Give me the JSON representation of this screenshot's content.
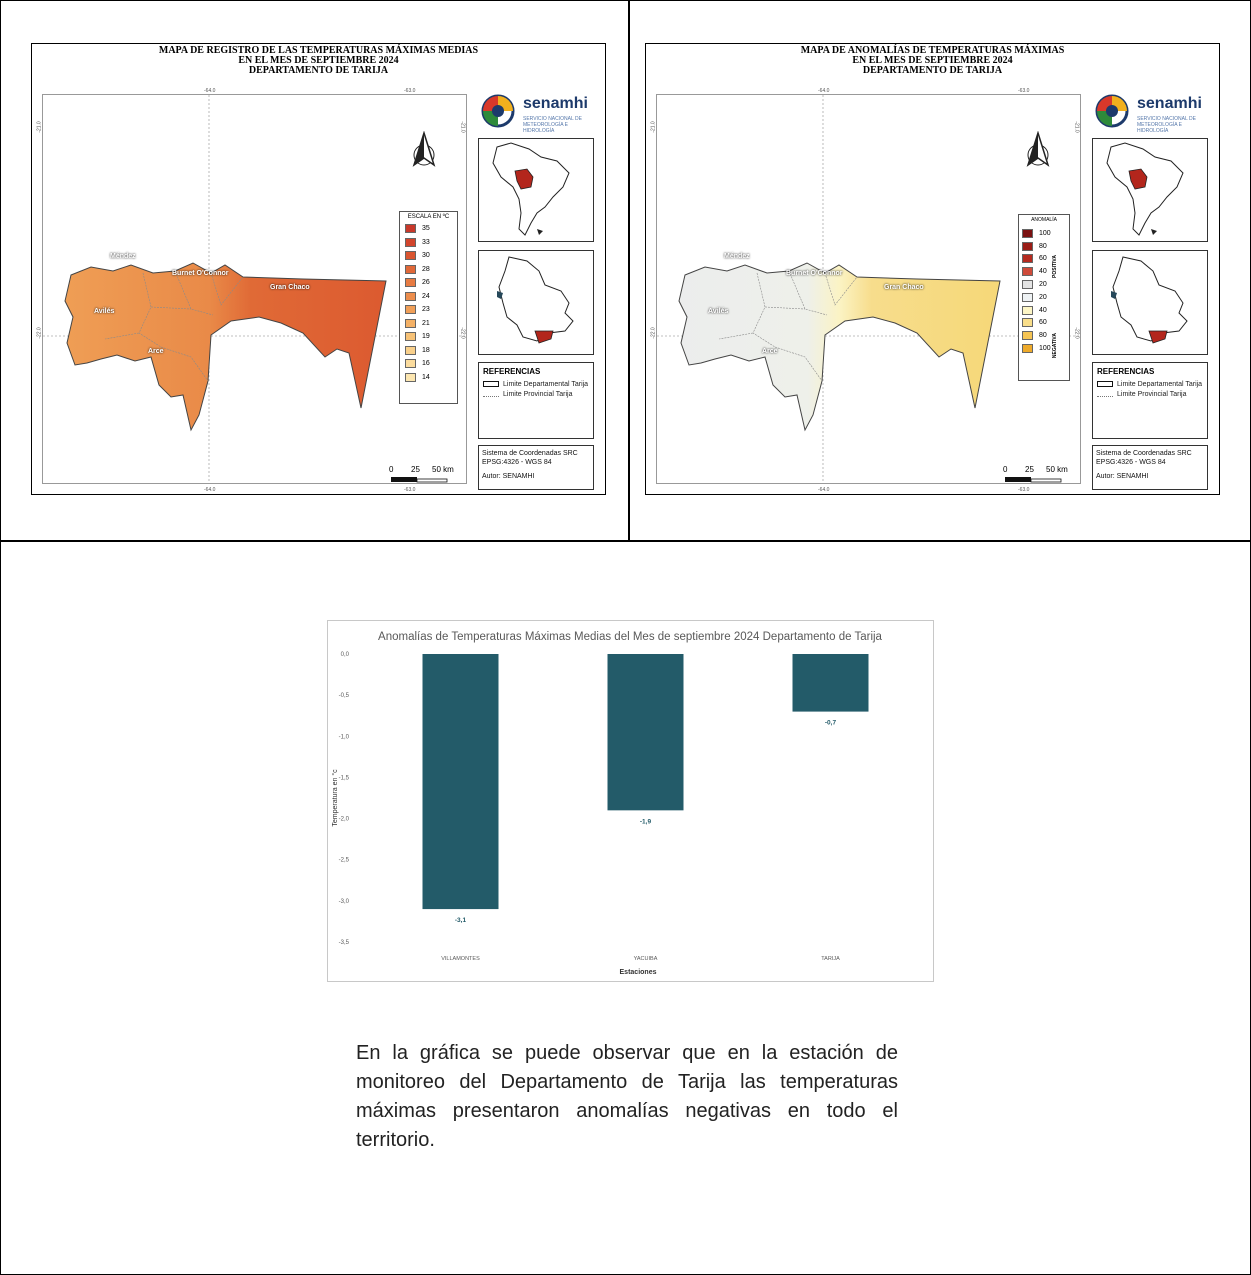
{
  "map_left": {
    "title_lines": [
      "MAPA DE REGISTRO DE LAS TEMPERATURAS MÁXIMAS MEDIAS",
      "EN EL MES DE SEPTIEMBRE 2024",
      "DEPARTAMENTO DE TARIJA"
    ],
    "legend_title": "ESCALA EN ºC",
    "legend": [
      {
        "label": "35",
        "color": "#c8382a"
      },
      {
        "label": "33",
        "color": "#d2452c"
      },
      {
        "label": "30",
        "color": "#da5530"
      },
      {
        "label": "28",
        "color": "#e06838"
      },
      {
        "label": "26",
        "color": "#e77b42"
      },
      {
        "label": "24",
        "color": "#ec8d4c"
      },
      {
        "label": "23",
        "color": "#f09f58"
      },
      {
        "label": "21",
        "color": "#f4b166"
      },
      {
        "label": "19",
        "color": "#f7c277"
      },
      {
        "label": "18",
        "color": "#f9d08b"
      },
      {
        "label": "16",
        "color": "#fbdc9e"
      },
      {
        "label": "14",
        "color": "#fce6b0"
      }
    ],
    "places": [
      "Méndez",
      "Burnet O'Connor",
      "Gran Chaco",
      "Avilés",
      "Arce"
    ],
    "ticks": {
      "top1": "-64.0",
      "top2": "-63.0",
      "bottom1": "-64.0",
      "bottom2": "-63.0",
      "left1": "-21.0",
      "left2": "-22.0",
      "right1": "-21.0",
      "right2": "-22.0"
    }
  },
  "map_right": {
    "title_lines": [
      "MAPA DE ANOMALÍAS DE TEMPERATURAS MÁXIMAS",
      "EN EL MES DE SEPTIEMBRE 2024",
      "DEPARTAMENTO DE TARIJA"
    ],
    "legend_title": "ANOMALÍA",
    "legend_pos_label": "POSITIVA",
    "legend_neg_label": "NEGATIVA",
    "legend": [
      {
        "label": "100",
        "color": "#7a1010"
      },
      {
        "label": "80",
        "color": "#9a1c16"
      },
      {
        "label": "60",
        "color": "#b52a1f"
      },
      {
        "label": "40",
        "color": "#cf4b3a"
      },
      {
        "label": "20",
        "color": "#e4e4e4"
      },
      {
        "label": "20",
        "color": "#eef2f4"
      },
      {
        "label": "40",
        "color": "#fdf6c6"
      },
      {
        "label": "60",
        "color": "#f9de8a"
      },
      {
        "label": "80",
        "color": "#f5c453"
      },
      {
        "label": "100",
        "color": "#eeaa2a"
      }
    ],
    "places": [
      "Méndez",
      "Burnet O'Connor",
      "Gran Chaco",
      "Avilés",
      "Arce"
    ],
    "ticks": {
      "top1": "-64.0",
      "top2": "-63.0",
      "bottom1": "-64.0",
      "bottom2": "-63.0",
      "left1": "-21.0",
      "left2": "-22.0",
      "right1": "-21.0",
      "right2": "-22.0"
    }
  },
  "shared": {
    "logo_word": "senamhi",
    "logo_sub_1": "SERVICIO NACIONAL DE",
    "logo_sub_2": "METEOROLOGÍA E HIDROLOGÍA",
    "refs_title": "REFERENCIAS",
    "ref_dept": "Limite Departamental Tarija",
    "ref_prov": "Limite Provincial Tarija",
    "coord_1": "Sistema de Coordenadas SRC",
    "coord_2": "EPSG:4326 - WGS 84",
    "author": "Autor: SENAMHI",
    "scale_0": "0",
    "scale_25": "25",
    "scale_50": "50 km"
  },
  "chart_data": {
    "type": "bar",
    "title": "Anomalías de Temperaturas Máximas Medias del Mes de septiembre 2024 Departamento  de Tarija",
    "xlabel": "Estaciones",
    "ylabel": "Temperatura en °c",
    "categories": [
      "VILLAMONTES",
      "YACUIBA",
      "TARIJA"
    ],
    "values": [
      -3.1,
      -1.9,
      -0.7
    ],
    "value_labels": [
      "-3,1",
      "-1,9",
      "-0,7"
    ],
    "ylim": [
      -3.5,
      0.0
    ],
    "yticks": [
      0.0,
      -0.5,
      -1.0,
      -1.5,
      -2.0,
      -2.5,
      -3.0,
      -3.5
    ],
    "ytick_labels": [
      "0,0",
      "-0,5",
      "-1,0",
      "-1,5",
      "-2,0",
      "-2,5",
      "-3,0",
      "-3,5"
    ],
    "bar_color": "#235b69",
    "grid": false
  },
  "paragraph": "En la gráfica se puede observar que en la estación de monitoreo del Departamento de Tarija las temperaturas máximas presentaron anomalías negativas en todo el territorio."
}
